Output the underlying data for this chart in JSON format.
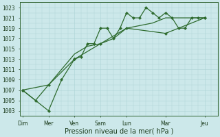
{
  "background_color": "#cce8ea",
  "grid_color": "#add4d6",
  "line_color": "#2d6a2d",
  "xlabel": "Pression niveau de la mer( hPa )",
  "yticks": [
    1003,
    1005,
    1007,
    1009,
    1011,
    1013,
    1015,
    1017,
    1019,
    1021,
    1023
  ],
  "ylim": [
    1002,
    1024
  ],
  "xtick_labels": [
    "Dim",
    "Mer",
    "Ven",
    "Sam",
    "Lun",
    "Mar",
    "Jeu"
  ],
  "xtick_positions": [
    0,
    2,
    4,
    6,
    8,
    11,
    14
  ],
  "xlim": [
    -0.2,
    15
  ],
  "series1_x": [
    0,
    1,
    2,
    3,
    4,
    4.5,
    5,
    5.5,
    6,
    6.5,
    7,
    7.5,
    8,
    8.5,
    9,
    9.5,
    10,
    10.5,
    11,
    11.5,
    12,
    12.5,
    13,
    13.5,
    14
  ],
  "series1_y": [
    1007,
    1005,
    1003,
    1009,
    1013,
    1013.5,
    1016,
    1016,
    1019,
    1019,
    1017,
    1019,
    1022,
    1021,
    1021,
    1023,
    1022,
    1021,
    1022,
    1021,
    1019,
    1019,
    1021,
    1021,
    1021
  ],
  "series2_x": [
    0,
    1,
    2,
    3,
    4,
    5,
    6,
    7,
    8,
    9,
    10,
    11,
    12,
    13,
    14
  ],
  "series2_y": [
    1007,
    1005,
    1008,
    1011,
    1014,
    1015.5,
    1016,
    1017,
    1019,
    1019.5,
    1020,
    1021,
    1021,
    1021,
    1021
  ],
  "series3_x": [
    0,
    2,
    4,
    6,
    8,
    11,
    14
  ],
  "series3_y": [
    1007,
    1008,
    1013,
    1016,
    1019,
    1018,
    1021
  ],
  "tick_fontsize": 5.5,
  "axis_fontsize": 7,
  "linewidth": 0.9,
  "markersize": 2.2
}
